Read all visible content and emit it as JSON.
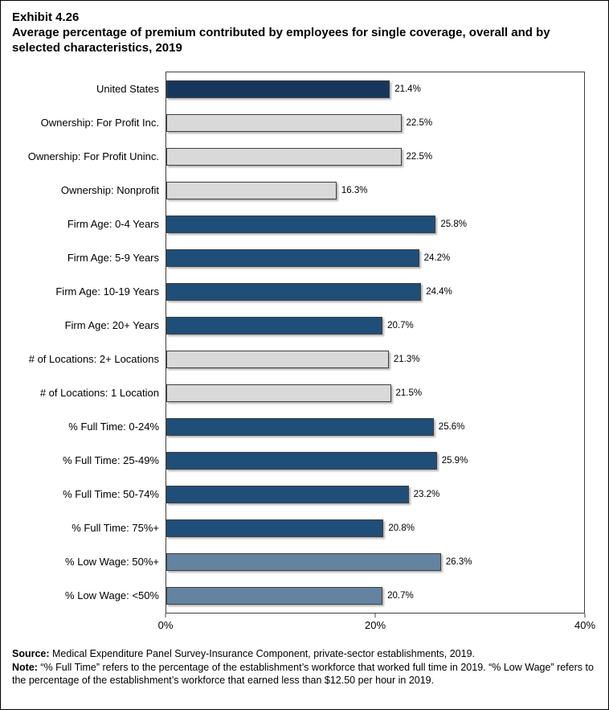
{
  "page": {
    "exhibit_label": "Exhibit 4.26",
    "title": "Average percentage of premium contributed by employees for single coverage, overall and by selected characteristics, 2019"
  },
  "chart_data": {
    "type": "bar",
    "orientation": "horizontal",
    "title": "Average percentage of premium contributed by employees for single coverage, overall and by selected characteristics, 2019",
    "categories": [
      "United States",
      "Ownership: For Profit Inc.",
      "Ownership: For Profit Uninc.",
      "Ownership: Nonprofit",
      "Firm Age: 0-4 Years",
      "Firm Age: 5-9 Years",
      "Firm Age: 10-19 Years",
      "Firm Age: 20+ Years",
      "# of Locations: 2+ Locations",
      "# of Locations: 1 Location",
      "% Full Time: 0-24%",
      "% Full Time: 25-49%",
      "% Full Time: 50-74%",
      "% Full Time: 75%+",
      "% Low Wage: 50%+",
      "% Low Wage: <50%"
    ],
    "values": [
      21.4,
      22.5,
      22.5,
      16.3,
      25.8,
      24.2,
      24.4,
      20.7,
      21.3,
      21.5,
      25.6,
      25.9,
      23.2,
      20.8,
      26.3,
      20.7
    ],
    "value_labels": [
      "21.4%",
      "22.5%",
      "22.5%",
      "16.3%",
      "25.8%",
      "24.2%",
      "24.4%",
      "20.7%",
      "21.3%",
      "21.5%",
      "25.6%",
      "25.9%",
      "23.2%",
      "20.8%",
      "26.3%",
      "20.7%"
    ],
    "bar_colors": [
      "#17365D",
      "#D9D9D9",
      "#D9D9D9",
      "#D9D9D9",
      "#1F4E79",
      "#1F4E79",
      "#1F4E79",
      "#1F4E79",
      "#D9D9D9",
      "#D9D9D9",
      "#1F4E79",
      "#1F4E79",
      "#1F4E79",
      "#1F4E79",
      "#6383A1",
      "#6383A1"
    ],
    "xlim": [
      0,
      40
    ],
    "x_ticks": [
      "0%",
      "20%",
      "40%"
    ],
    "x_tick_values": [
      0,
      20,
      40
    ],
    "grid": false,
    "legend": "none"
  },
  "footer": {
    "source_label": "Source:",
    "source_text": " Medical Expenditure Panel Survey-Insurance Component, private-sector establishments, 2019.",
    "note_label": "Note:",
    "note_text": " “% Full Time” refers to the percentage of the establishment’s workforce that worked full time in 2019. “% Low Wage” refers to the percentage of the establishment’s workforce that earned less than $12.50 per hour in 2019."
  }
}
